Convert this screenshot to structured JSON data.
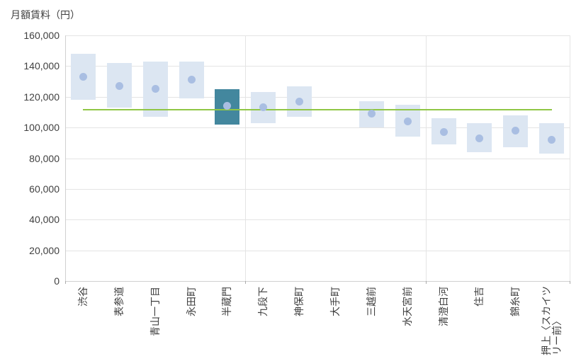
{
  "chart_data": {
    "type": "range-bar-with-average",
    "title": "月額賃料（円）",
    "ylabel": "月額賃料（円）",
    "ylim": [
      0,
      160000
    ],
    "ytick_step": 20000,
    "ytick_labels": [
      "0",
      "20,000",
      "40,000",
      "60,000",
      "80,000",
      "100,000",
      "120,000",
      "140,000",
      "160,000"
    ],
    "grid": true,
    "legend_position": "none",
    "categories": [
      "渋谷",
      "表参道",
      "青山一丁目",
      "永田町",
      "半蔵門",
      "九段下",
      "神保町",
      "大手町",
      "三越前",
      "水天宮前",
      "清澄白河",
      "住吉",
      "錦糸町",
      "押上〈スカイツ\nリー前〉"
    ],
    "points": [
      {
        "label": "渋谷",
        "low": 118000,
        "high": 148000,
        "avg": 133000
      },
      {
        "label": "表参道",
        "low": 113000,
        "high": 142000,
        "avg": 127000
      },
      {
        "label": "青山一丁目",
        "low": 107000,
        "high": 143000,
        "avg": 125000
      },
      {
        "label": "永田町",
        "low": 119000,
        "high": 143000,
        "avg": 131000
      },
      {
        "label": "半蔵門",
        "low": 102000,
        "high": 125000,
        "avg": 114000,
        "highlight": true
      },
      {
        "label": "九段下",
        "low": 103000,
        "high": 123000,
        "avg": 113000
      },
      {
        "label": "神保町",
        "low": 107000,
        "high": 127000,
        "avg": 117000
      },
      {
        "label": "大手町",
        "low": null,
        "high": null,
        "avg": null
      },
      {
        "label": "三越前",
        "low": 100000,
        "high": 117000,
        "avg": 109000
      },
      {
        "label": "水天宮前",
        "low": 94000,
        "high": 115000,
        "avg": 104000
      },
      {
        "label": "清澄白河",
        "low": 89000,
        "high": 106000,
        "avg": 97000
      },
      {
        "label": "住吉",
        "low": 84000,
        "high": 103000,
        "avg": 93000
      },
      {
        "label": "錦糸町",
        "low": 87000,
        "high": 108000,
        "avg": 98000
      },
      {
        "label": "押上〈スカイツ\nリー前〉",
        "low": 83000,
        "high": 103000,
        "avg": 92000
      }
    ],
    "highlighted_category": "半蔵門",
    "empty_categories": [
      "大手町"
    ],
    "reference_line_value": 111500,
    "group_separators_after_index": [
      5,
      10
    ],
    "colors": {
      "bar": "#DCE6F2",
      "bar_highlight": "#43879E",
      "average_dot": "#A9BEE2",
      "reference_line": "#90C645",
      "gridline": "#E4E4E4",
      "axis_line": "#D0D0D0",
      "text": "#404040"
    }
  }
}
